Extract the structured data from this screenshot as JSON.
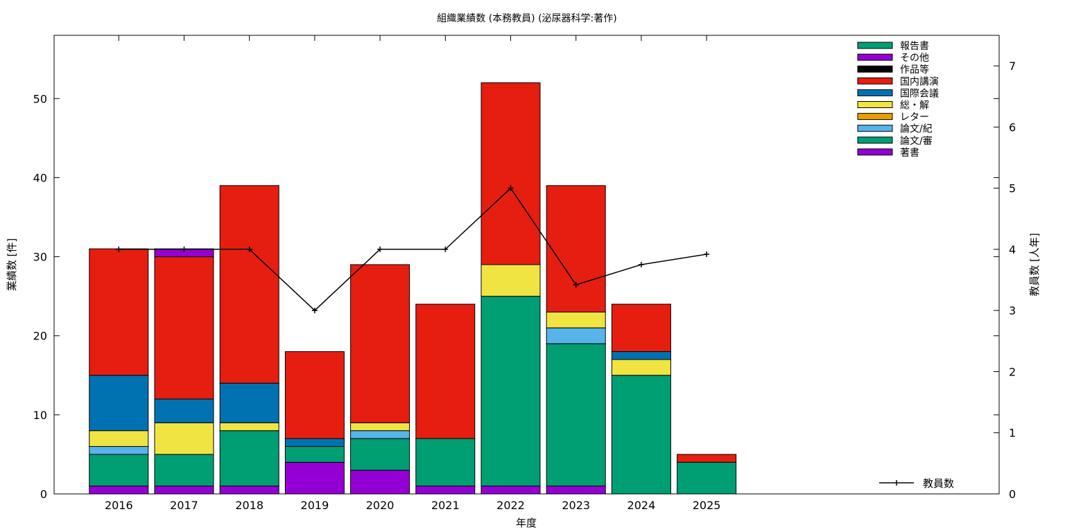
{
  "chart_data": {
    "type": "bar",
    "title": "組織業績数 (本務教員) (泌尿器科学:著作)",
    "xlabel": "年度",
    "ylabel": "業績数 [件]",
    "y2label": "教員数 [人年]",
    "ylim": [
      0,
      58
    ],
    "y2lim": [
      0,
      7.5
    ],
    "yticks": [
      0,
      10,
      20,
      30,
      40,
      50
    ],
    "y2ticks": [
      0,
      1,
      2,
      3,
      4,
      5,
      6,
      7
    ],
    "stacked": true,
    "grid": false,
    "legend_position": "top-right",
    "categories": [
      "2016",
      "2017",
      "2018",
      "2019",
      "2020",
      "2021",
      "2022",
      "2023",
      "2024",
      "2025"
    ],
    "series": [
      {
        "name": "著書",
        "color": "#9400d3",
        "values": [
          1,
          1,
          1,
          4,
          3,
          1,
          1,
          1,
          0,
          0
        ]
      },
      {
        "name": "論文/審",
        "color": "#009e73",
        "values": [
          4,
          4,
          7,
          2,
          4,
          6,
          24,
          18,
          15,
          4
        ]
      },
      {
        "name": "論文/紀",
        "color": "#56b4e9",
        "values": [
          1,
          0,
          0,
          0,
          1,
          0,
          0,
          2,
          0,
          0
        ]
      },
      {
        "name": "レター",
        "color": "#e69f00",
        "values": [
          0,
          0,
          0,
          0,
          0,
          0,
          0,
          0,
          0,
          0
        ]
      },
      {
        "name": "総・解",
        "color": "#f0e442",
        "values": [
          2,
          4,
          1,
          0,
          1,
          0,
          4,
          2,
          2,
          0
        ]
      },
      {
        "name": "国際会議",
        "color": "#0072b2",
        "values": [
          7,
          3,
          5,
          1,
          0,
          0,
          0,
          0,
          1,
          0
        ]
      },
      {
        "name": "国内講演",
        "color": "#e51e10",
        "values": [
          16,
          18,
          25,
          11,
          20,
          17,
          23,
          16,
          6,
          1
        ]
      },
      {
        "name": "作品等",
        "color": "#000000",
        "values": [
          0,
          0,
          0,
          0,
          0,
          0,
          0,
          0,
          0,
          0
        ]
      },
      {
        "name": "その他",
        "color": "#9400d3",
        "values": [
          0,
          1,
          0,
          0,
          0,
          0,
          0,
          0,
          0,
          0
        ]
      },
      {
        "name": "報告書",
        "color": "#009e73",
        "values": [
          0,
          0,
          0,
          0,
          0,
          0,
          0,
          0,
          0,
          0
        ]
      }
    ],
    "legend_order": [
      "報告書",
      "その他",
      "作品等",
      "国内講演",
      "国際会議",
      "総・解",
      "レター",
      "論文/紀",
      "論文/審",
      "著書"
    ],
    "line_series": {
      "name": "教員数",
      "color": "#000000",
      "axis": "y2",
      "values": [
        4,
        4,
        4,
        3,
        4,
        4,
        5,
        3.42,
        3.75,
        3.92
      ]
    }
  }
}
